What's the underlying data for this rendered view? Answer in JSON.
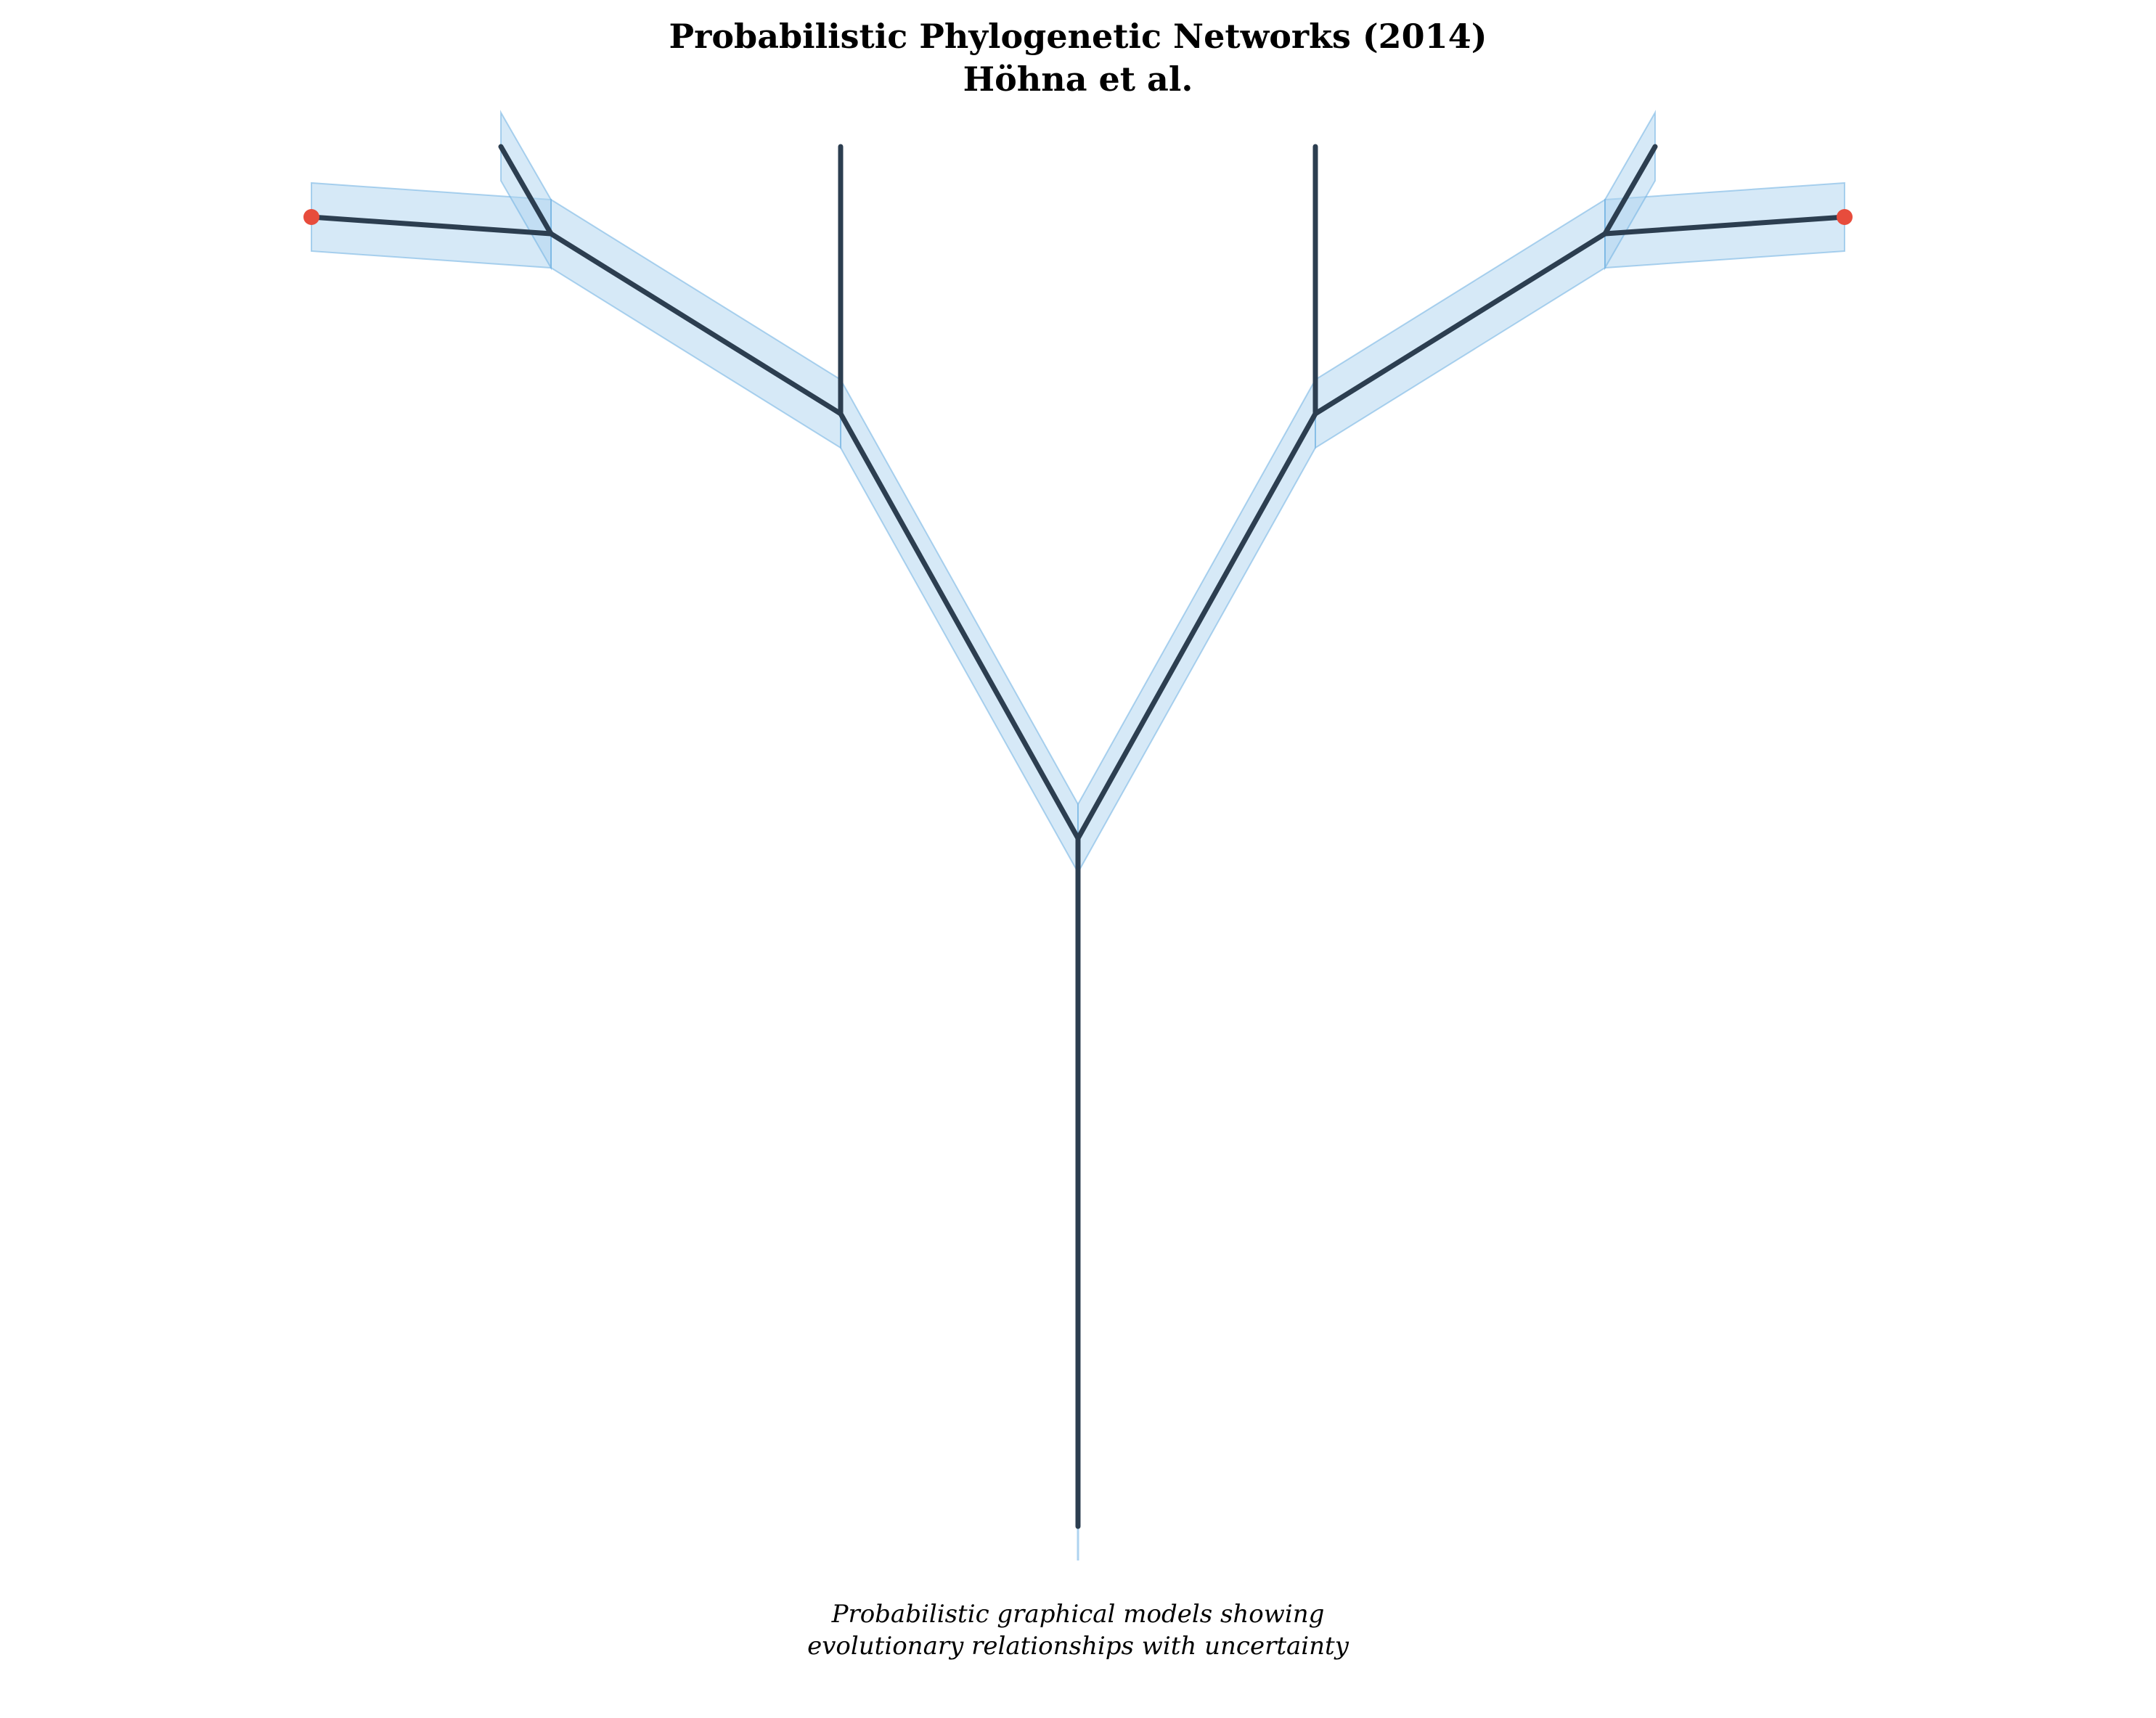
{
  "figure": {
    "title_line1": "Probabilistic Phylogenetic Networks (2014)",
    "title_line2": "Höhna et al.",
    "caption_line1": "Probabilistic graphical models showing",
    "caption_line2": "evolutionary relationships with uncertainty"
  },
  "colors": {
    "branch": "#2c3e50",
    "uncertainty_band": "#aed3f0",
    "band_edge": "#6fb0e2",
    "tip_node": "#e74c3c"
  },
  "network": {
    "nodes": [
      {
        "id": "root",
        "type": "root"
      },
      {
        "id": "center",
        "type": "internal"
      },
      {
        "id": "left-mid",
        "type": "internal"
      },
      {
        "id": "right-mid",
        "type": "internal"
      },
      {
        "id": "left-upper",
        "type": "internal"
      },
      {
        "id": "right-upper",
        "type": "internal"
      },
      {
        "id": "left-tip",
        "type": "tip"
      },
      {
        "id": "right-tip",
        "type": "tip"
      },
      {
        "id": "left-out-a",
        "type": "open"
      },
      {
        "id": "left-out-b",
        "type": "open"
      },
      {
        "id": "right-out-a",
        "type": "open"
      },
      {
        "id": "right-out-b",
        "type": "open"
      }
    ],
    "edges": [
      {
        "from": "root",
        "to": "center",
        "uncertainty": false
      },
      {
        "from": "center",
        "to": "left-mid",
        "uncertainty": true
      },
      {
        "from": "center",
        "to": "right-mid",
        "uncertainty": true
      },
      {
        "from": "left-mid",
        "to": "left-upper",
        "uncertainty": true
      },
      {
        "from": "right-mid",
        "to": "right-upper",
        "uncertainty": true
      },
      {
        "from": "left-upper",
        "to": "left-tip",
        "uncertainty": true
      },
      {
        "from": "right-upper",
        "to": "right-tip",
        "uncertainty": true
      },
      {
        "from": "left-upper",
        "to": "left-out-a",
        "uncertainty": true
      },
      {
        "from": "right-upper",
        "to": "right-out-a",
        "uncertainty": true
      },
      {
        "from": "left-mid",
        "to": "left-out-b",
        "uncertainty": false
      },
      {
        "from": "right-mid",
        "to": "right-out-b",
        "uncertainty": false
      }
    ]
  }
}
